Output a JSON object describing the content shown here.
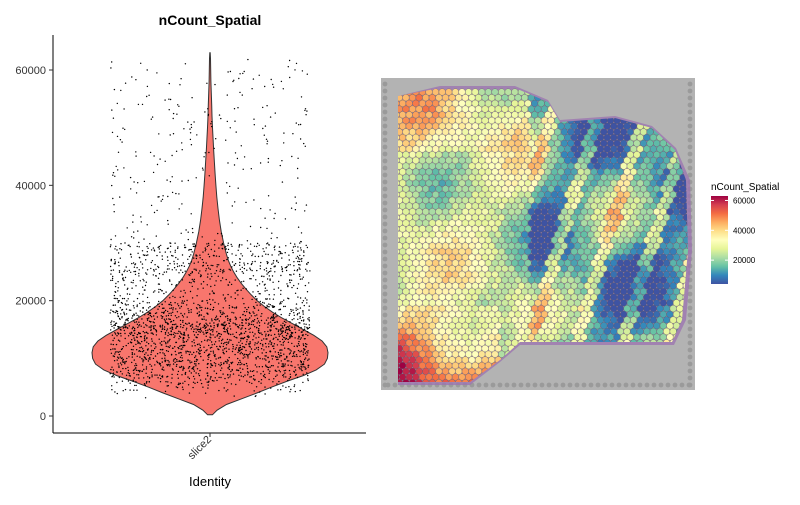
{
  "chart_data": [
    {
      "type": "violin",
      "title": "nCount_Spatial",
      "xlabel": "Identity",
      "ylabel": "",
      "categories": [
        "slice2"
      ],
      "ylim": [
        -2000,
        66000
      ],
      "yticks": [
        0,
        20000,
        40000,
        60000
      ],
      "ytick_labels": [
        "0",
        "20000",
        "40000",
        "60000"
      ],
      "violin": {
        "fill": "#F8766D",
        "outline": "#333333",
        "density_profile": [
          [
            200,
            0.02
          ],
          [
            1000,
            0.06
          ],
          [
            2000,
            0.14
          ],
          [
            3000,
            0.27
          ],
          [
            4000,
            0.4
          ],
          [
            5000,
            0.52
          ],
          [
            6000,
            0.65
          ],
          [
            7000,
            0.79
          ],
          [
            8000,
            0.9
          ],
          [
            9000,
            0.97
          ],
          [
            10000,
            0.995
          ],
          [
            11000,
            1.0
          ],
          [
            12000,
            0.99
          ],
          [
            13000,
            0.95
          ],
          [
            14000,
            0.88
          ],
          [
            15000,
            0.79
          ],
          [
            16000,
            0.7
          ],
          [
            17000,
            0.61
          ],
          [
            18000,
            0.53
          ],
          [
            19000,
            0.46
          ],
          [
            20000,
            0.4
          ],
          [
            21000,
            0.35
          ],
          [
            22000,
            0.305
          ],
          [
            23000,
            0.265
          ],
          [
            24000,
            0.23
          ],
          [
            25000,
            0.2
          ],
          [
            26000,
            0.175
          ],
          [
            27000,
            0.155
          ],
          [
            28000,
            0.14
          ],
          [
            30000,
            0.115
          ],
          [
            32000,
            0.095
          ],
          [
            34000,
            0.08
          ],
          [
            36000,
            0.068
          ],
          [
            38000,
            0.058
          ],
          [
            40000,
            0.05
          ],
          [
            42000,
            0.043
          ],
          [
            44000,
            0.037
          ],
          [
            46000,
            0.031
          ],
          [
            48000,
            0.026
          ],
          [
            50000,
            0.021
          ],
          [
            52000,
            0.017
          ],
          [
            54000,
            0.014
          ],
          [
            56000,
            0.011
          ],
          [
            58000,
            0.008
          ],
          [
            60000,
            0.006
          ],
          [
            62000,
            0.004
          ],
          [
            63000,
            0.002
          ]
        ]
      },
      "jitter_points": {
        "count": 2600,
        "min": 300,
        "max": 63000,
        "color": "#000000"
      }
    },
    {
      "type": "spatial",
      "legend": {
        "title": "nCount_Spatial",
        "ticks": [
          20000,
          40000,
          60000
        ],
        "tick_labels": [
          "20000",
          "40000",
          "60000"
        ],
        "range": [
          4000,
          63000
        ],
        "colormap": "Spectral",
        "colors": [
          "#3E53A3",
          "#3387BC",
          "#66C2A5",
          "#ABDDA4",
          "#E6F598",
          "#FFFFBF",
          "#FEE08B",
          "#FDAE61",
          "#F46D43",
          "#D53E4F",
          "#9E0142"
        ]
      },
      "background": "#B3B3B3",
      "tissue_color": "#9B72B0"
    }
  ]
}
